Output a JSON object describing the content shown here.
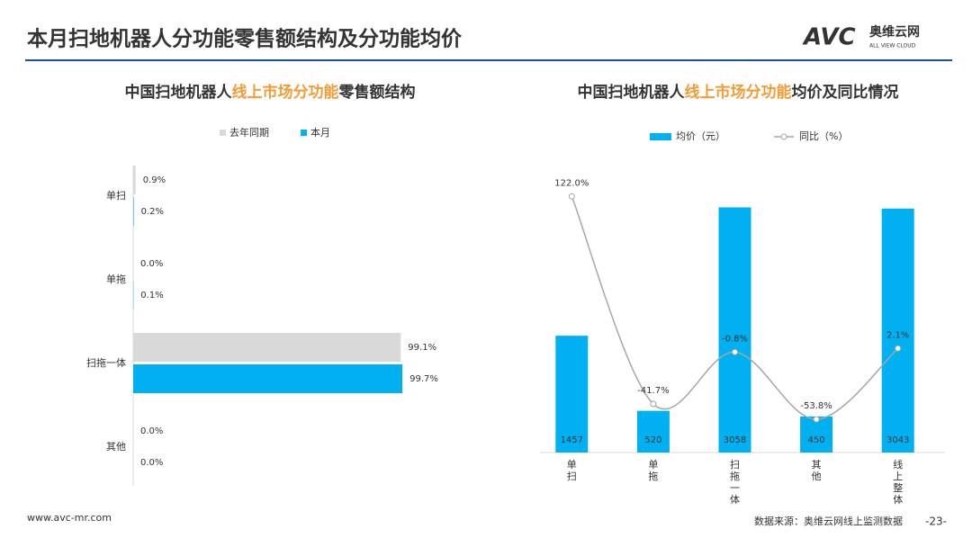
{
  "title": "本月扫地机器人分功能零售额结构及分功能均价",
  "logo": {
    "mark": "AVC",
    "name": "奥维云网",
    "sub": "ALL VIEW CLOUD"
  },
  "footer": {
    "source": "数据来源：奥维云网线上监测数据",
    "page": "-23-",
    "website": "www.avc-mr.com"
  },
  "chart_data": [
    {
      "type": "hbar",
      "title": [
        "中国扫地机器人",
        "线上市场分功能",
        "零售额结构"
      ],
      "categories": [
        "单扫",
        "单拖",
        "扫拖一体",
        "其他"
      ],
      "xlim": [
        0,
        100
      ],
      "series": [
        {
          "name": "去年同期",
          "color": "#d9d9d9",
          "values": [
            0.9,
            0.0,
            99.1,
            0.0
          ],
          "value_labels": [
            "0.9%",
            "0.0%",
            "99.1%",
            "0.0%"
          ]
        },
        {
          "name": "本月",
          "color": "#00b0f0",
          "values": [
            0.2,
            0.1,
            99.7,
            0.0
          ],
          "value_labels": [
            "0.2%",
            "0.1%",
            "99.7%",
            "0.0%"
          ]
        }
      ]
    },
    {
      "type": "combo",
      "title": [
        "中国扫地机器人",
        "线上市场分功能",
        "均价及同比情况"
      ],
      "categories": [
        "单扫",
        "单拖",
        "扫拖一体",
        "其他",
        "线上整体"
      ],
      "ylim": [
        0,
        3400
      ],
      "y2lim": [
        -80,
        135
      ],
      "series": [
        {
          "name": "均价（元）",
          "color": "#00b0f0",
          "values": [
            1457,
            520,
            3058,
            450,
            3043
          ]
        },
        {
          "name": "同比（%）",
          "color": "#a6a6a6",
          "axis": "y2",
          "values": [
            122.0,
            -41.7,
            -0.8,
            -53.8,
            2.1
          ],
          "value_labels": [
            "122.0%",
            "-41.7%",
            "-0.8%",
            "-53.8%",
            "2.1%"
          ]
        }
      ]
    }
  ]
}
